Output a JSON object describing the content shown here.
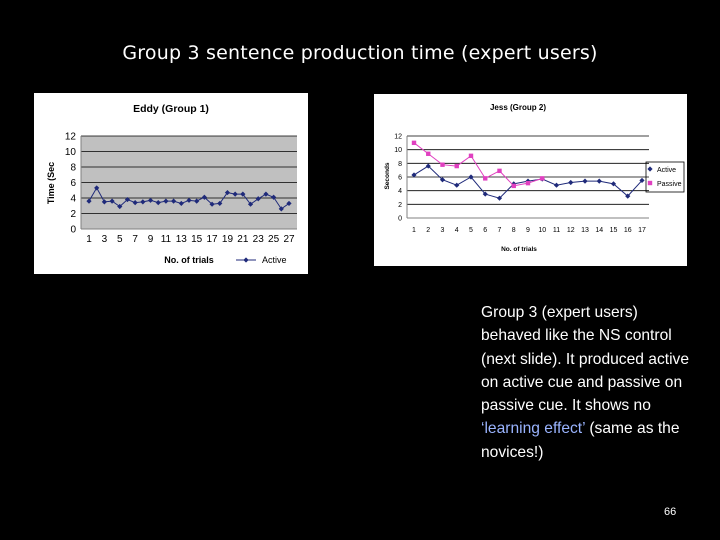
{
  "slide": {
    "title": "Group 3 sentence production time (expert users)",
    "body_pre": "Group 3 (expert users) behaved like the NS control (next slide). It produced active on active cue and passive on passive cue. It shows no ",
    "body_highlight": "‘learning effect’",
    "body_post": " (same as the novices!)",
    "page_number": "66",
    "highlight_color": "#9ab4ff"
  },
  "chart_data": [
    {
      "type": "line",
      "title": "Eddy (Group 1)",
      "xlabel": "No. of trials",
      "ylabel": "Time (Sec",
      "ylim": [
        0,
        12
      ],
      "yticks": [
        0,
        2,
        4,
        6,
        8,
        10,
        12
      ],
      "xticks": [
        1,
        3,
        5,
        7,
        9,
        11,
        13,
        15,
        17,
        19,
        21,
        23,
        25,
        27
      ],
      "x": [
        1,
        2,
        3,
        4,
        5,
        6,
        7,
        8,
        9,
        10,
        11,
        12,
        13,
        14,
        15,
        16,
        17,
        18,
        19,
        20,
        21,
        22,
        23,
        24,
        25,
        26,
        27
      ],
      "grid": "horizontal",
      "legend": "bottom-right",
      "series": [
        {
          "name": "Active",
          "color": "#1f2a7a",
          "marker": "diamond",
          "values": [
            3.6,
            5.3,
            3.5,
            3.6,
            2.9,
            3.8,
            3.4,
            3.5,
            3.7,
            3.4,
            3.6,
            3.6,
            3.3,
            3.7,
            3.6,
            4.1,
            3.2,
            3.3,
            4.7,
            4.5,
            4.5,
            3.2,
            3.9,
            4.5,
            4.1,
            2.6,
            3.3
          ]
        }
      ]
    },
    {
      "type": "line",
      "title": "Jess (Group 2)",
      "xlabel": "No. of trials",
      "ylabel": "Seconds",
      "ylim": [
        0,
        12
      ],
      "yticks": [
        0,
        2,
        4,
        6,
        8,
        10,
        12
      ],
      "x": [
        1,
        2,
        3,
        4,
        5,
        6,
        7,
        8,
        9,
        10,
        11,
        12,
        13,
        14,
        15,
        16,
        17
      ],
      "xticks": [
        1,
        2,
        3,
        4,
        5,
        6,
        7,
        8,
        9,
        10,
        11,
        12,
        13,
        14,
        15,
        16,
        17
      ],
      "grid": "horizontal",
      "legend": "right",
      "series": [
        {
          "name": "Active",
          "color": "#1f2a7a",
          "marker": "diamond",
          "values": [
            6.3,
            7.6,
            5.6,
            4.8,
            6.0,
            3.5,
            2.9,
            5.0,
            5.4,
            5.7,
            4.8,
            5.2,
            5.4,
            5.4,
            5.0,
            3.2,
            5.5
          ]
        },
        {
          "name": "Passive",
          "color": "#e040c0",
          "marker": "square",
          "values": [
            11.0,
            9.4,
            7.8,
            7.6,
            9.1,
            5.8,
            6.9,
            4.7,
            5.1,
            5.8,
            null,
            null,
            null,
            null,
            null,
            null,
            null
          ]
        }
      ]
    }
  ]
}
